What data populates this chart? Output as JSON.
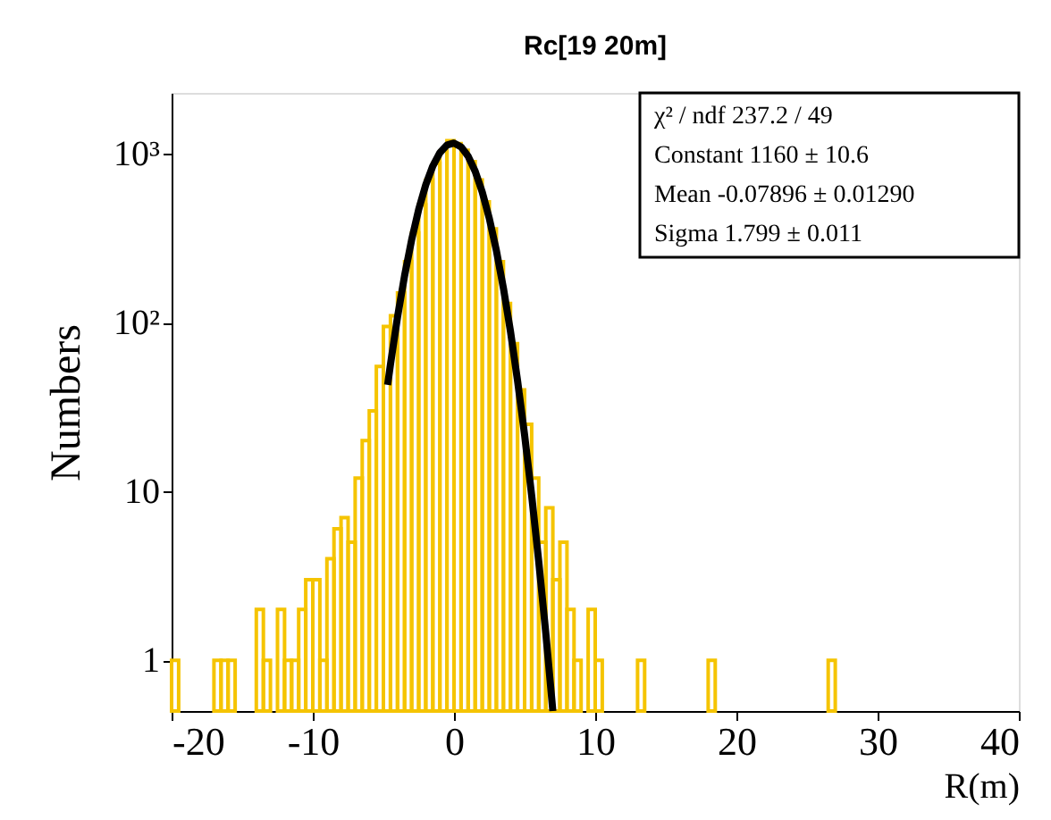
{
  "chart_data": {
    "type": "histogram",
    "title": "Rc[19 20m]",
    "xlabel": "R(m)",
    "ylabel": "Numbers",
    "xlim": [
      -20,
      40
    ],
    "xticks": [
      -20,
      -10,
      0,
      10,
      20,
      30,
      40
    ],
    "ylim": [
      0.5,
      2300
    ],
    "yticks": [
      1,
      10,
      {
        "value": 100,
        "label": "10²"
      },
      {
        "value": 1000,
        "label": "10³"
      }
    ],
    "log": "y",
    "grid": false,
    "annotations": [
      "χ² / ndf 237.2 / 49",
      "Constant 1160 ± 10.6",
      "Mean -0.07896 ± 0.01290",
      "Sigma 1.799 ± 0.011"
    ],
    "series": [
      {
        "color": "#f5c400",
        "bins": [
          -20,
          -19.5,
          -19,
          -18.5,
          -18,
          -17.5,
          -17,
          -16.5,
          -16,
          -15.5,
          -15,
          -14.5,
          -14,
          -13.5,
          -13,
          -12.5,
          -12,
          -11.5,
          -11,
          -10.5,
          -10,
          -9.5,
          -9,
          -8.5,
          -8,
          -7.5,
          -7,
          -6.5,
          -6,
          -5.5,
          -5,
          -4.5,
          -4,
          -3.5,
          -3,
          -2.5,
          -2,
          -1.5,
          -1,
          -0.5,
          0,
          0.5,
          1,
          1.5,
          2,
          2.5,
          3,
          3.5,
          4,
          4.5,
          5,
          5.5,
          6,
          6.5,
          7,
          7.5,
          8,
          8.5,
          9,
          9.5,
          10,
          10.5,
          11,
          11.5,
          12,
          12.5,
          13,
          13.5,
          14,
          14.5,
          15,
          15.5,
          16,
          16.5,
          17,
          17.5,
          18,
          18.5,
          19,
          19.5,
          20,
          20.5,
          21,
          21.5,
          22,
          22.5,
          23,
          23.5,
          24,
          24.5,
          25,
          25.5,
          26,
          26.5,
          27,
          27.5,
          28,
          28.5,
          29,
          29.5,
          30,
          30.5,
          31,
          31.5,
          32,
          32.5,
          33,
          33.5,
          34,
          34.5,
          35,
          35.5,
          36,
          36.5,
          37,
          37.5,
          38,
          38.5,
          39,
          39.5,
          40
        ],
        "values": [
          1,
          null,
          null,
          null,
          null,
          null,
          1,
          1,
          1,
          null,
          null,
          null,
          2,
          1,
          null,
          2,
          1,
          1,
          2,
          3,
          3,
          1,
          4,
          6,
          7,
          5,
          12,
          20,
          30,
          55,
          95,
          110,
          150,
          230,
          340,
          500,
          700,
          880,
          1040,
          1200,
          1150,
          1050,
          900,
          700,
          520,
          360,
          230,
          130,
          75,
          40,
          25,
          12,
          5,
          8,
          3,
          5,
          2,
          1,
          null,
          2,
          1,
          null,
          null,
          null,
          null,
          null,
          1,
          null,
          null,
          null,
          null,
          null,
          null,
          null,
          null,
          null,
          1,
          null,
          null,
          null,
          null,
          null,
          null,
          null,
          null,
          null,
          null,
          null,
          null,
          null,
          null,
          null,
          null,
          1,
          null,
          null,
          null,
          null,
          null,
          null,
          null,
          null,
          null,
          null,
          null,
          null,
          null,
          null,
          null,
          null,
          null,
          null,
          null,
          null,
          null,
          null,
          null,
          null,
          null,
          null
        ]
      },
      {
        "type": "line",
        "line_style": "solid",
        "color": "#000000",
        "x": [
          -4.7,
          -4.5,
          -4,
          -3.5,
          -3,
          -2.5,
          -2,
          -1.5,
          -1,
          -0.5,
          0,
          0.5,
          1,
          1.5,
          2,
          2.5,
          3,
          3.5,
          4,
          4.5,
          5,
          5.5,
          6,
          6.5,
          7
        ],
        "values": [
          42.8,
          56.6,
          108,
          190,
          310,
          469,
          656,
          849,
          1017,
          1129,
          1159,
          1101,
          969,
          789,
          595,
          415,
          268,
          160,
          88.8,
          45.4,
          21.6,
          9.46,
          3.85,
          1.45,
          0.5
        ]
      }
    ]
  }
}
